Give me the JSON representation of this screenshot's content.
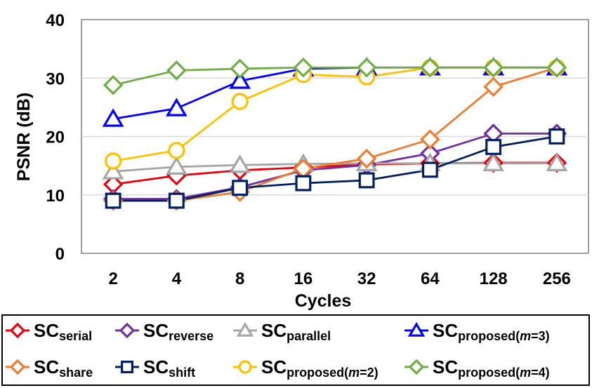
{
  "chart_data": {
    "type": "line",
    "title": "",
    "xlabel": "Cycles",
    "ylabel": "PSNR (dB)",
    "categories": [
      "2",
      "4",
      "8",
      "16",
      "32",
      "64",
      "128",
      "256"
    ],
    "ylim": [
      0,
      40
    ],
    "yticks": [
      "0",
      "10",
      "20",
      "30",
      "40"
    ],
    "grid": true,
    "legend_placement": "bottom",
    "series": [
      {
        "name": "SC",
        "sub": "serial",
        "sub_italic": "",
        "sub_tail": "",
        "marker": "diamond",
        "color": "#e8000a",
        "values": [
          11.8,
          13.3,
          14.2,
          14.7,
          15.2,
          15.4,
          15.5,
          15.5
        ]
      },
      {
        "name": "SC",
        "sub": "reverse",
        "sub_italic": "",
        "sub_tail": "",
        "marker": "diamond",
        "color": "#7030a0",
        "values": [
          9.3,
          9.3,
          11.3,
          14.2,
          15.1,
          17.1,
          20.5,
          20.5
        ]
      },
      {
        "name": "SC",
        "sub": "parallel",
        "sub_italic": "",
        "sub_tail": "",
        "marker": "triangle",
        "color": "#a6a6a6",
        "values": [
          14.0,
          14.8,
          15.1,
          15.3,
          15.4,
          15.4,
          15.4,
          15.4
        ]
      },
      {
        "name": "SC",
        "sub": "proposed(",
        "sub_italic": "m",
        "sub_tail": "=3)",
        "marker": "triangle",
        "color": "#0000ff",
        "values": [
          23.0,
          24.8,
          29.5,
          31.6,
          31.8,
          31.8,
          31.8,
          31.8
        ]
      },
      {
        "name": "SC",
        "sub": "share",
        "sub_italic": "",
        "sub_tail": "",
        "marker": "diamond",
        "color": "#ed7d31",
        "values": [
          9.0,
          9.0,
          10.5,
          14.5,
          16.2,
          19.5,
          28.5,
          31.8
        ]
      },
      {
        "name": "SC",
        "sub": "shift",
        "sub_italic": "",
        "sub_tail": "",
        "marker": "square",
        "color": "#002060",
        "values": [
          9.0,
          9.0,
          11.2,
          12.0,
          12.5,
          14.3,
          18.2,
          20.0
        ]
      },
      {
        "name": "SC",
        "sub": "proposed(",
        "sub_italic": "m",
        "sub_tail": "=2)",
        "marker": "circle",
        "color": "#ffc000",
        "values": [
          15.8,
          17.6,
          26.0,
          30.6,
          30.2,
          31.8,
          31.8,
          31.8
        ]
      },
      {
        "name": "SC",
        "sub": "proposed(",
        "sub_italic": "m",
        "sub_tail": "=4)",
        "marker": "diamond",
        "color": "#70ad47",
        "values": [
          28.8,
          31.3,
          31.6,
          31.8,
          31.8,
          31.8,
          31.8,
          31.8
        ]
      }
    ]
  }
}
